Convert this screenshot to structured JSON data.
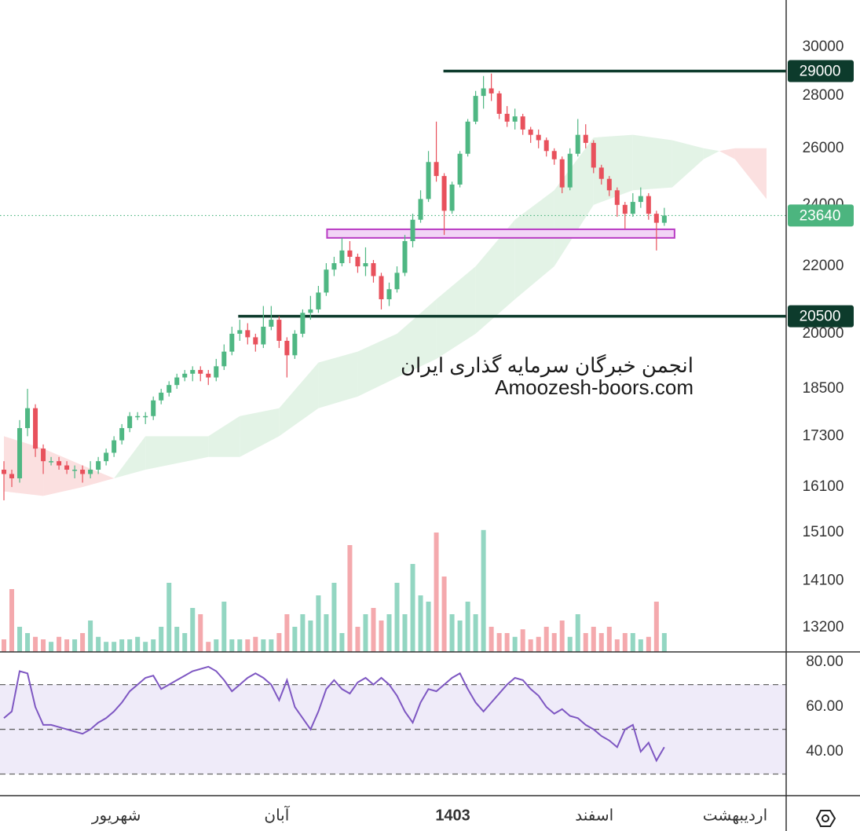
{
  "chart_data": [
    {
      "type": "candlestick",
      "xlim": [
        -0.5,
        99.5
      ],
      "ylim": [
        12750,
        32070
      ],
      "log_scale": true,
      "grid": false,
      "yticks": [
        13200,
        14100,
        15100,
        16100,
        17300,
        18500,
        20000,
        22000,
        24000,
        26000,
        28000,
        30000
      ],
      "xticks": [
        {
          "value": 14.3,
          "label": "شهریور"
        },
        {
          "value": 34.7,
          "label": "آبان"
        },
        {
          "value": 57.1,
          "label": "1403",
          "bold": true
        },
        {
          "value": 75.1,
          "label": "اسفند"
        },
        {
          "value": 93,
          "label": "اردیبهشت"
        }
      ],
      "up_color": "#4fb783",
      "down_color": "#e8515c",
      "volume_up_color": "#93d6c2",
      "volume_down_color": "#f4a9ad",
      "open": [
        16500,
        16400,
        16300,
        17500,
        18000,
        17000,
        16700,
        16700,
        16600,
        16500,
        16500,
        16400,
        16500,
        16700,
        16900,
        17200,
        17500,
        17800,
        17800,
        17800,
        18200,
        18400,
        18600,
        18800,
        18900,
        19000,
        18900,
        18800,
        19100,
        19500,
        20000,
        20100,
        19900,
        19700,
        20200,
        20400,
        19800,
        19400,
        20000,
        20600,
        20700,
        21200,
        21900,
        22100,
        22500,
        22300,
        22000,
        22100,
        21700,
        21000,
        21300,
        21800,
        22800,
        23500,
        24200,
        25500,
        25000,
        23800,
        24700,
        25800,
        27000,
        28000,
        28300,
        28100,
        27300,
        27000,
        27200,
        26700,
        26500,
        26300,
        25900,
        25600,
        24600,
        25800,
        26500,
        26200,
        25300,
        24900,
        24500,
        24000,
        23700,
        24100,
        24300,
        23700,
        23400
      ],
      "high": [
        16700,
        16500,
        17700,
        18500,
        18100,
        17100,
        16800,
        16800,
        16700,
        16600,
        16600,
        16700,
        16800,
        17000,
        17300,
        17600,
        17900,
        17900,
        17900,
        18300,
        18500,
        18700,
        18900,
        19000,
        19100,
        19100,
        19000,
        19300,
        19700,
        20200,
        20400,
        20300,
        20000,
        20800,
        20800,
        20500,
        19900,
        20100,
        20700,
        21100,
        21400,
        22100,
        22300,
        22900,
        22800,
        22400,
        22600,
        22200,
        21800,
        21500,
        22000,
        23000,
        23700,
        24500,
        25900,
        27000,
        25100,
        24800,
        25900,
        27100,
        28200,
        28800,
        28900,
        28200,
        27600,
        27500,
        27300,
        26800,
        26700,
        26400,
        26000,
        25700,
        26000,
        27100,
        26900,
        26300,
        25400,
        25000,
        24600,
        24100,
        24400,
        24600,
        24400,
        23800,
        23900
      ],
      "low": [
        15800,
        16100,
        16200,
        17300,
        16800,
        16400,
        16600,
        16500,
        16400,
        16300,
        16200,
        16300,
        16400,
        16600,
        16800,
        17100,
        17400,
        17700,
        17600,
        17700,
        18100,
        18300,
        18500,
        18700,
        18700,
        18700,
        18600,
        18700,
        19000,
        19400,
        19800,
        19700,
        19500,
        19600,
        20100,
        19600,
        18800,
        19300,
        19900,
        20400,
        20600,
        21100,
        21700,
        22000,
        22100,
        21800,
        21700,
        21500,
        20700,
        20800,
        21200,
        21700,
        22600,
        23400,
        24100,
        24800,
        23000,
        23700,
        24600,
        25700,
        26900,
        27500,
        27800,
        27100,
        26800,
        26700,
        26500,
        26200,
        26000,
        25700,
        25400,
        24400,
        24500,
        25700,
        26000,
        25100,
        24700,
        24300,
        23600,
        23200,
        23600,
        23900,
        23500,
        22500,
        23300
      ],
      "close": [
        16400,
        16300,
        17500,
        18000,
        17000,
        16700,
        16700,
        16600,
        16500,
        16500,
        16400,
        16500,
        16700,
        16900,
        17200,
        17500,
        17800,
        17800,
        17800,
        18200,
        18400,
        18600,
        18800,
        18900,
        19000,
        18900,
        18800,
        19100,
        19500,
        20000,
        20100,
        19900,
        19700,
        20200,
        20400,
        19800,
        19400,
        20000,
        20600,
        20700,
        21200,
        21900,
        22100,
        22500,
        22300,
        22000,
        22100,
        21700,
        21000,
        21300,
        21800,
        22800,
        23500,
        24200,
        25500,
        25000,
        23800,
        24700,
        25800,
        27000,
        28000,
        28300,
        28100,
        27300,
        27000,
        27200,
        26700,
        26500,
        26300,
        25900,
        25600,
        24600,
        25800,
        26500,
        26200,
        25300,
        24900,
        24500,
        24000,
        23700,
        24100,
        24300,
        23700,
        23400,
        23640
      ],
      "volume": [
        10,
        50,
        20,
        15,
        12,
        10,
        8,
        12,
        10,
        10,
        15,
        25,
        12,
        8,
        8,
        10,
        10,
        12,
        8,
        10,
        20,
        55,
        20,
        15,
        35,
        30,
        8,
        10,
        40,
        10,
        10,
        10,
        12,
        10,
        10,
        15,
        30,
        20,
        30,
        25,
        45,
        30,
        55,
        15,
        85,
        20,
        30,
        35,
        25,
        30,
        55,
        30,
        70,
        45,
        40,
        95,
        60,
        30,
        25,
        40,
        30,
        97,
        20,
        15,
        15,
        12,
        18,
        10,
        12,
        20,
        15,
        25,
        12,
        30,
        15,
        20,
        15,
        20,
        10,
        15,
        15,
        10,
        12,
        40,
        15
      ],
      "cloud": {
        "x": [
          0,
          5,
          10,
          14,
          18,
          26,
          30,
          35,
          40,
          45,
          50,
          55,
          60,
          65,
          70,
          75,
          80,
          85,
          89,
          91,
          93,
          97
        ],
        "span_a": [
          16000,
          15900,
          16100,
          16300,
          17300,
          17300,
          17800,
          18000,
          19200,
          19500,
          20000,
          21000,
          22000,
          23500,
          24500,
          26400,
          26500,
          26300,
          26000,
          25900,
          25600,
          24200
        ],
        "span_b": [
          17300,
          17000,
          16600,
          16300,
          16500,
          16800,
          16800,
          17300,
          18000,
          18300,
          18800,
          19300,
          20000,
          21000,
          22000,
          24000,
          24500,
          24600,
          25600,
          25900,
          26000,
          26000
        ],
        "up_color": "#e3f3e6",
        "down_color": "#fbe0e0"
      },
      "levels": [
        {
          "value": 29000,
          "from": 55.9
        },
        {
          "value": 20500,
          "from": 29.8
        }
      ],
      "level_color": "#0d3b2c",
      "last_price": {
        "value": 23640,
        "color": "#4cb57f"
      },
      "zone": {
        "top": 23185,
        "bottom": 22905,
        "from": 41.1,
        "to": 85.3,
        "color": "#b93cc4",
        "fill": "#f2d4f6"
      },
      "watermark": [
        "انجمن خبرگان سرمایه گذاری ایران",
        "Amoozesh-boors.com"
      ]
    },
    {
      "type": "line",
      "xlim": [
        -0.5,
        99.5
      ],
      "ylim": [
        20.7,
        83.9
      ],
      "yticks": [
        {
          "value": 40,
          "label": "40.00"
        },
        {
          "value": 60,
          "label": "60.00"
        },
        {
          "value": 80,
          "label": "80.00"
        }
      ],
      "band": [
        30,
        70
      ],
      "levels": [
        30,
        50,
        70
      ],
      "color": "#7e57c2",
      "band_color": "#efebf9",
      "values": [
        55,
        58,
        76,
        75,
        60,
        52,
        52,
        51,
        50,
        49,
        48,
        50,
        53,
        55,
        58,
        62,
        67,
        70,
        73,
        74,
        68,
        70,
        72,
        74,
        76,
        77,
        78,
        76,
        72,
        67,
        70,
        73,
        75,
        73,
        70,
        63,
        72,
        60,
        55,
        50,
        58,
        68,
        72,
        68,
        66,
        71,
        73,
        70,
        73,
        70,
        65,
        58,
        53,
        62,
        68,
        67,
        70,
        73,
        75,
        68,
        62,
        58,
        62,
        66,
        70,
        73,
        72,
        68,
        65,
        60,
        57,
        59,
        56,
        55,
        52,
        50,
        47,
        45,
        42,
        50,
        52,
        40,
        44,
        36,
        42
      ]
    }
  ]
}
